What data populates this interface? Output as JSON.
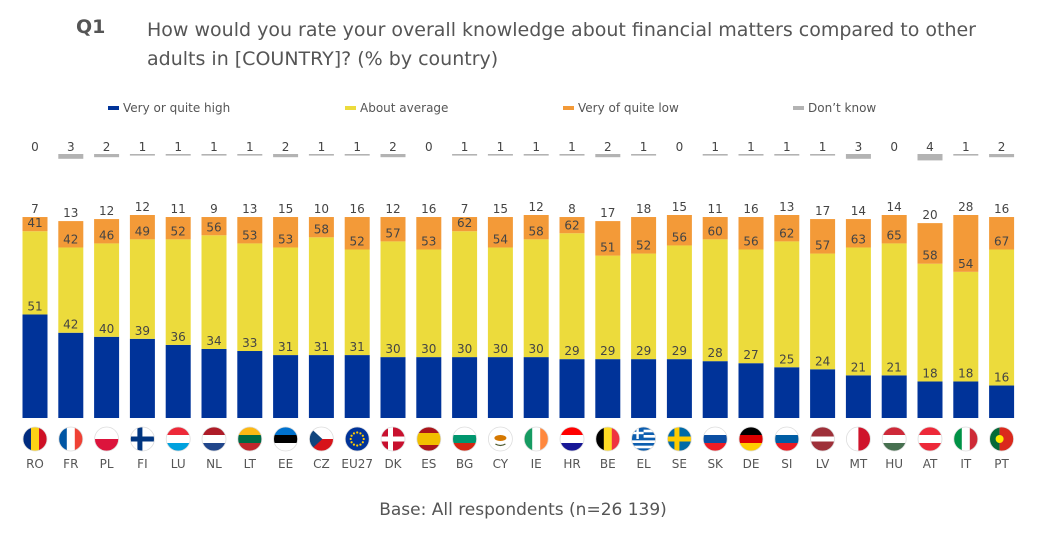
{
  "header": {
    "question_number": "Q1",
    "question_text": "How would you rate your overall knowledge about financial matters compared to other adults in [COUNTRY]? (% by country)"
  },
  "legend": [
    {
      "label": "Very or quite high",
      "color": "#003399"
    },
    {
      "label": "About average",
      "color": "#ecdb3c"
    },
    {
      "label": "Very of quite low",
      "color": "#f39a38"
    },
    {
      "label": "Don’t know",
      "color": "#b3b3b3"
    }
  ],
  "footer": {
    "base": "Base: All respondents (n=26 139)"
  },
  "chart_data": {
    "type": "bar",
    "stacked": true,
    "categories": [
      "RO",
      "FR",
      "PL",
      "FI",
      "LU",
      "NL",
      "LT",
      "EE",
      "CZ",
      "EU27",
      "DK",
      "ES",
      "BG",
      "CY",
      "IE",
      "HR",
      "BE",
      "EL",
      "SE",
      "SK",
      "DE",
      "SI",
      "LV",
      "MT",
      "HU",
      "AT",
      "IT",
      "PT"
    ],
    "series": [
      {
        "name": "Very or quite high",
        "values": [
          51,
          42,
          40,
          39,
          36,
          34,
          33,
          31,
          31,
          31,
          30,
          30,
          30,
          30,
          30,
          29,
          29,
          29,
          29,
          28,
          27,
          25,
          24,
          21,
          21,
          18,
          18,
          16
        ]
      },
      {
        "name": "About average",
        "values": [
          41,
          42,
          46,
          49,
          52,
          56,
          53,
          53,
          58,
          52,
          57,
          53,
          62,
          54,
          58,
          62,
          51,
          52,
          56,
          60,
          56,
          62,
          57,
          63,
          65,
          58,
          54,
          67
        ]
      },
      {
        "name": "Very of quite low",
        "values": [
          7,
          13,
          12,
          12,
          11,
          9,
          13,
          15,
          10,
          16,
          12,
          16,
          7,
          15,
          12,
          8,
          17,
          18,
          15,
          11,
          16,
          13,
          17,
          14,
          14,
          20,
          28,
          16
        ]
      },
      {
        "name": "Don’t know",
        "values": [
          0,
          3,
          2,
          1,
          1,
          1,
          1,
          2,
          1,
          1,
          2,
          0,
          1,
          1,
          1,
          1,
          2,
          1,
          0,
          1,
          1,
          1,
          1,
          3,
          0,
          4,
          1,
          2
        ]
      }
    ],
    "ylim": [
      0,
      100
    ],
    "grid": false,
    "legend_position": "top",
    "flags": {
      "RO": {
        "type": "v",
        "colors": [
          "#002b7f",
          "#fcd116",
          "#ce1126"
        ]
      },
      "FR": {
        "type": "v",
        "colors": [
          "#0055a4",
          "#ffffff",
          "#ef4135"
        ]
      },
      "PL": {
        "type": "h",
        "colors": [
          "#ffffff",
          "#dc143c"
        ]
      },
      "FI": {
        "type": "cross",
        "colors": [
          "#ffffff",
          "#003580"
        ]
      },
      "LU": {
        "type": "h",
        "colors": [
          "#ed2939",
          "#ffffff",
          "#00a1de"
        ]
      },
      "NL": {
        "type": "h",
        "colors": [
          "#ae1c28",
          "#ffffff",
          "#21468b"
        ]
      },
      "LT": {
        "type": "h",
        "colors": [
          "#fdb913",
          "#006a44",
          "#c1272d"
        ]
      },
      "EE": {
        "type": "h",
        "colors": [
          "#0072ce",
          "#000000",
          "#ffffff"
        ]
      },
      "CZ": {
        "type": "cz",
        "colors": [
          "#ffffff",
          "#d7141a",
          "#11457e"
        ]
      },
      "EU27": {
        "type": "eu",
        "colors": [
          "#003399",
          "#ffcc00"
        ]
      },
      "DK": {
        "type": "cross",
        "colors": [
          "#c8102e",
          "#ffffff"
        ]
      },
      "ES": {
        "type": "es",
        "colors": [
          "#aa151b",
          "#f1bf00"
        ]
      },
      "BG": {
        "type": "h",
        "colors": [
          "#ffffff",
          "#00966e",
          "#d62612"
        ]
      },
      "CY": {
        "type": "cy",
        "colors": [
          "#ffffff",
          "#d57800"
        ]
      },
      "IE": {
        "type": "v",
        "colors": [
          "#169b62",
          "#ffffff",
          "#ff883e"
        ]
      },
      "HR": {
        "type": "h",
        "colors": [
          "#ff0000",
          "#ffffff",
          "#171796"
        ]
      },
      "BE": {
        "type": "v",
        "colors": [
          "#000000",
          "#fdda24",
          "#ef3340"
        ]
      },
      "EL": {
        "type": "gr",
        "colors": [
          "#0d5eaf",
          "#ffffff"
        ]
      },
      "SE": {
        "type": "cross",
        "colors": [
          "#006aa7",
          "#fecc00"
        ]
      },
      "SK": {
        "type": "h",
        "colors": [
          "#ffffff",
          "#0b4ea2",
          "#ee1c25"
        ]
      },
      "DE": {
        "type": "h",
        "colors": [
          "#000000",
          "#dd0000",
          "#ffce00"
        ]
      },
      "SI": {
        "type": "h",
        "colors": [
          "#ffffff",
          "#005da4",
          "#ed1c24"
        ]
      },
      "LV": {
        "type": "lv",
        "colors": [
          "#9e3039",
          "#ffffff"
        ]
      },
      "MT": {
        "type": "v2",
        "colors": [
          "#ffffff",
          "#cf142b"
        ]
      },
      "HU": {
        "type": "h",
        "colors": [
          "#ce2939",
          "#ffffff",
          "#477050"
        ]
      },
      "AT": {
        "type": "h",
        "colors": [
          "#ed2939",
          "#ffffff",
          "#ed2939"
        ]
      },
      "IT": {
        "type": "v",
        "colors": [
          "#009246",
          "#ffffff",
          "#ce2b37"
        ]
      },
      "PT": {
        "type": "pt",
        "colors": [
          "#046a38",
          "#da291c",
          "#ffe900"
        ]
      }
    }
  }
}
